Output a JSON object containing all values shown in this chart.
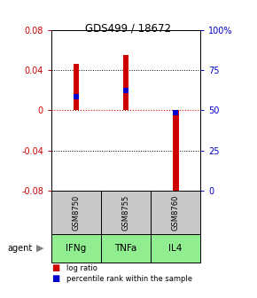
{
  "title": "GDS499 / 18672",
  "samples": [
    "GSM8750",
    "GSM8755",
    "GSM8760"
  ],
  "agents": [
    "IFNg",
    "TNFa",
    "IL4"
  ],
  "log_ratios": [
    0.046,
    0.055,
    -0.085
  ],
  "percentile_ranks": [
    58.5,
    62.5,
    48.5
  ],
  "bar_color": "#cc0000",
  "pct_color": "#0000cc",
  "bar_width": 0.12,
  "ylim_left": [
    -0.08,
    0.08
  ],
  "yticks_left": [
    -0.08,
    -0.04,
    0.0,
    0.04,
    0.08
  ],
  "yticks_right": [
    0,
    25,
    50,
    75,
    100
  ],
  "sample_box_color": "#c8c8c8",
  "agent_box_color": "#90ee90",
  "legend_labels": [
    "log ratio",
    "percentile rank within the sample"
  ],
  "left_axis_color": "#cc0000",
  "right_axis_color": "#0000cc",
  "agent_arrow_color": "#808080"
}
